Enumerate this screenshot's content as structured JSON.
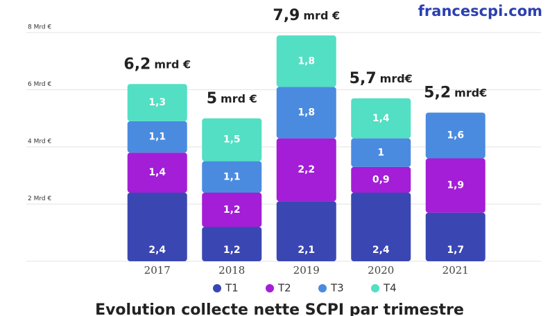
{
  "chart_data": {
    "type": "stacked-bar",
    "title": "Evolution collecte nette SCPI par trimestre",
    "brand": "francescpi.com",
    "categories": [
      "2017",
      "2018",
      "2019",
      "2020",
      "2021"
    ],
    "series": [
      {
        "name": "T1",
        "color": "#3a47b3",
        "values": [
          2.4,
          1.2,
          2.1,
          2.4,
          1.7
        ],
        "value_labels": [
          "2,4",
          "1,2",
          "2,1",
          "2,4",
          "1,7"
        ]
      },
      {
        "name": "T2",
        "color": "#a31ed6",
        "values": [
          1.4,
          1.2,
          2.2,
          0.9,
          1.9
        ],
        "value_labels": [
          "1,4",
          "1,2",
          "2,2",
          "0,9",
          "1,9"
        ]
      },
      {
        "name": "T3",
        "color": "#4a8be0",
        "values": [
          1.1,
          1.1,
          1.8,
          1,
          1.6
        ],
        "value_labels": [
          "1,1",
          "1,1",
          "1,8",
          "1",
          "1,6"
        ]
      },
      {
        "name": "T4",
        "color": "#52dfc3",
        "values": [
          1.3,
          1.5,
          1.8,
          1.4,
          null
        ],
        "value_labels": [
          "1,3",
          "1,5",
          "1,8",
          "1,4",
          null
        ]
      }
    ],
    "totals": {
      "values": [
        6.2,
        5,
        7.9,
        5.7,
        5.2
      ],
      "value_labels": [
        "6,2",
        "5",
        "7,9",
        "5,7",
        "5,2"
      ],
      "units": [
        "mrd €",
        "mrd €",
        "mrd €",
        "mrd€",
        "mrd€"
      ]
    },
    "ylim": [
      0,
      8
    ],
    "yticks": [
      {
        "value": 2,
        "label": "2 Mrd €"
      },
      {
        "value": 4,
        "label": "4 Mrd €"
      },
      {
        "value": 6,
        "label": "6 Mrd €"
      },
      {
        "value": 8,
        "label": "8 Mrd €"
      }
    ],
    "grid": true
  }
}
